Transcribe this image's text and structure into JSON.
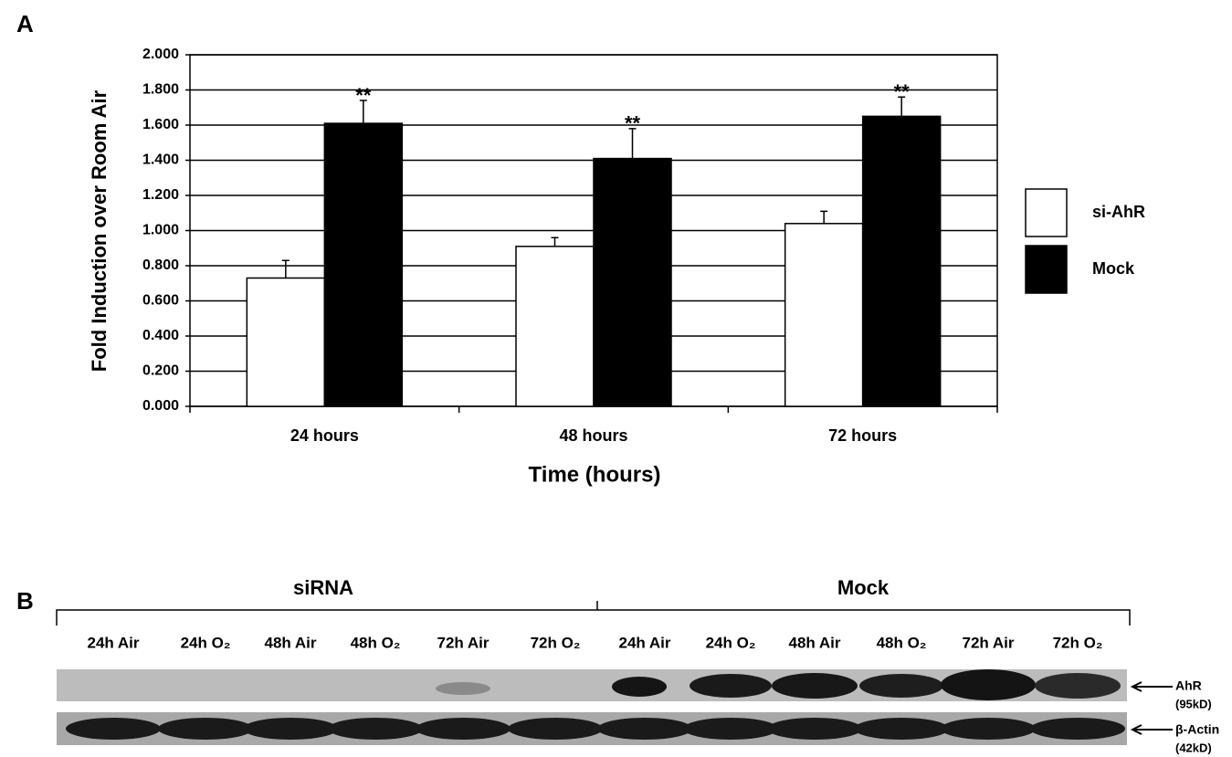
{
  "panel_labels": [
    "A",
    "B"
  ],
  "chart_data": {
    "type": "bar",
    "x_label": "Time (hours)",
    "y_label": "Fold Induction over Room Air",
    "categories": [
      "24 hours",
      "48 hours",
      "72 hours"
    ],
    "series": [
      {
        "name": "si-AhR",
        "color": "#ffffff",
        "values": [
          0.73,
          0.91,
          1.04
        ],
        "errors": [
          0.1,
          0.05,
          0.07
        ]
      },
      {
        "name": "Mock",
        "color": "#000000",
        "values": [
          1.61,
          1.41,
          1.65
        ],
        "errors": [
          0.13,
          0.17,
          0.11
        ],
        "annotations": [
          "**",
          "**",
          "**"
        ]
      }
    ],
    "ylim": [
      0,
      2
    ],
    "yticks": [
      {
        "value": 0,
        "label": "0.000"
      },
      {
        "value": 0.2,
        "label": "0.200"
      },
      {
        "value": 0.4,
        "label": "0.400"
      },
      {
        "value": 0.6,
        "label": "0.600"
      },
      {
        "value": 0.8,
        "label": "0.800"
      },
      {
        "value": 1,
        "label": "1.000"
      },
      {
        "value": 1.2,
        "label": "1.200"
      },
      {
        "value": 1.4,
        "label": "1.400"
      },
      {
        "value": 1.6,
        "label": "1.600"
      },
      {
        "value": 1.8,
        "label": "1.800"
      },
      {
        "value": 2,
        "label": "2.000"
      }
    ],
    "grid": true,
    "legend": "right"
  },
  "blot": {
    "groups": [
      "siRNA",
      "Mock"
    ],
    "lanes": [
      "24h Air",
      "24h O₂",
      "48h Air",
      "48h O₂",
      "72h Air",
      "72h O₂",
      "24h Air",
      "24h O₂",
      "48h Air",
      "48h O₂",
      "72h Air",
      "72h O₂"
    ],
    "rows": [
      {
        "name": "AhR",
        "size": "(95kD)"
      },
      {
        "name": "β-Actin",
        "size": "(42kD)"
      }
    ]
  }
}
